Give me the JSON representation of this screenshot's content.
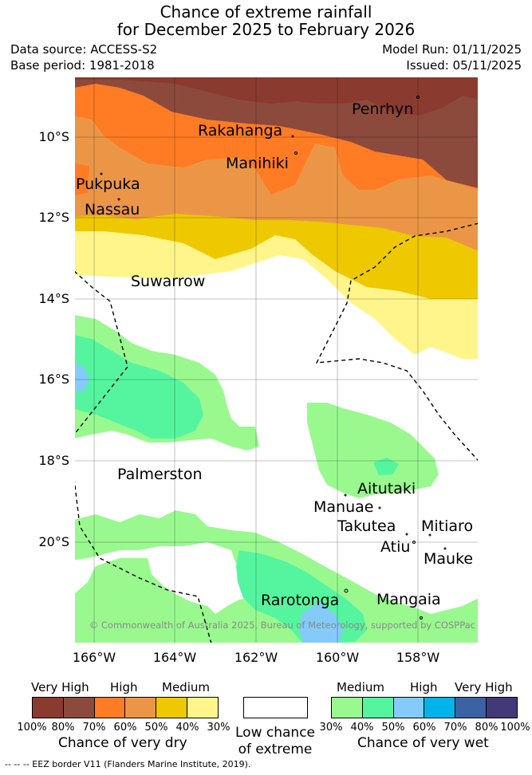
{
  "title": {
    "line1": "Chance of extreme rainfall",
    "line2": "for December 2025 to February 2026"
  },
  "info": {
    "data_source": "Data source: ACCESS-S2",
    "base_period": "Base period: 1981-2018",
    "model_run": "Model Run: 01/11/2025",
    "issued": "Issued: 05/11/2025"
  },
  "axes": {
    "lat_labels": [
      "10°S",
      "12°S",
      "14°S",
      "16°S",
      "18°S",
      "20°S"
    ],
    "lon_labels": [
      "166°W",
      "164°W",
      "162°W",
      "160°W",
      "158°W"
    ]
  },
  "places": [
    {
      "name": "Penrhyn"
    },
    {
      "name": "Rakahanga"
    },
    {
      "name": "Manihiki"
    },
    {
      "name": "Pukpuka"
    },
    {
      "name": "Nassau"
    },
    {
      "name": "Suwarrow"
    },
    {
      "name": "Palmerston"
    },
    {
      "name": "Aitutaki"
    },
    {
      "name": "Manuae"
    },
    {
      "name": "Takutea"
    },
    {
      "name": "Mitiaro"
    },
    {
      "name": "Atiu"
    },
    {
      "name": "Mauke"
    },
    {
      "name": "Rarotonga"
    },
    {
      "name": "Mangaia"
    }
  ],
  "copyright": "© Commonwealth of Australia 2025, Bureau of Meteorology, supported by COSPPac",
  "legend": {
    "dry": {
      "categories": [
        "Very High",
        "High",
        "Medium"
      ],
      "ticks": [
        "100%",
        "80%",
        "70%",
        "60%",
        "50%",
        "40%",
        "30%"
      ],
      "colors": [
        "#8b3a2f",
        "#8b4a3c",
        "#ff7b24",
        "#eb9647",
        "#eec800",
        "#fff58a"
      ],
      "title": "Chance of very dry"
    },
    "neutral": {
      "title_line1": "Low chance",
      "title_line2": "of extreme",
      "color": "#ffffff"
    },
    "wet": {
      "categories": [
        "Medium",
        "High",
        "Very High"
      ],
      "ticks": [
        "30%",
        "40%",
        "50%",
        "60%",
        "70%",
        "80%",
        "100%"
      ],
      "colors": [
        "#99f98f",
        "#55f5a0",
        "#84cbf9",
        "#00b4ea",
        "#3b63a3",
        "#433978"
      ],
      "title": "Chance of very wet"
    }
  },
  "footer": "-- -- -- EEZ border V11 (Flanders Marine Institute, 2019)."
}
